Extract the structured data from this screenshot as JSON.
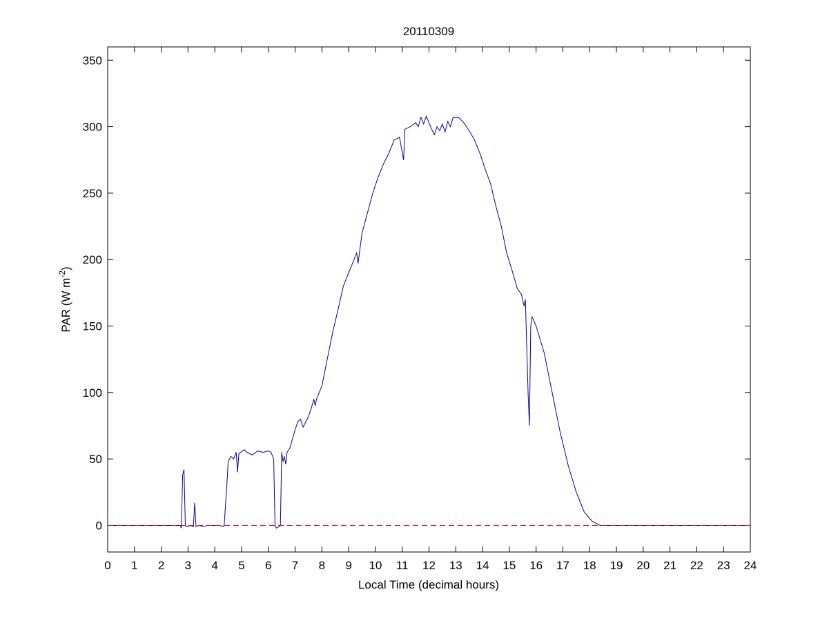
{
  "chart_data": {
    "type": "line",
    "title": "20110309",
    "xlabel": "Local Time (decimal hours)",
    "ylabel": [
      "PAR (W m",
      "-2",
      ")"
    ],
    "xlim": [
      0,
      24
    ],
    "ylim": [
      -20,
      360
    ],
    "xticks": [
      0,
      1,
      2,
      3,
      4,
      5,
      6,
      7,
      8,
      9,
      10,
      11,
      12,
      13,
      14,
      15,
      16,
      17,
      18,
      19,
      20,
      21,
      22,
      23,
      24
    ],
    "yticks": [
      0,
      50,
      100,
      150,
      200,
      250,
      300,
      350
    ],
    "reference_line": {
      "value": 0,
      "color": "#ff0000",
      "style": "dashed"
    },
    "series": [
      {
        "color": "#0000a0",
        "x": [
          0,
          2.7,
          2.75,
          2.8,
          2.85,
          2.9,
          2.95,
          3.1,
          3.2,
          3.25,
          3.3,
          3.4,
          3.6,
          3.7,
          4.2,
          4.3,
          4.35,
          4.45,
          4.5,
          4.6,
          4.7,
          4.8,
          4.85,
          4.9,
          5.1,
          5.2,
          5.4,
          5.6,
          5.8,
          6.0,
          6.1,
          6.2,
          6.25,
          6.3,
          6.4,
          6.45,
          6.5,
          6.55,
          6.6,
          6.65,
          6.7,
          6.8,
          6.9,
          7.0,
          7.1,
          7.2,
          7.3,
          7.4,
          7.5,
          7.6,
          7.7,
          7.75,
          7.8,
          8.0,
          8.2,
          8.4,
          8.6,
          8.8,
          9.0,
          9.2,
          9.3,
          9.35,
          9.5,
          9.7,
          9.9,
          10.1,
          10.3,
          10.5,
          10.7,
          10.9,
          11.05,
          11.1,
          11.3,
          11.5,
          11.6,
          11.7,
          11.8,
          11.9,
          12.0,
          12.1,
          12.2,
          12.3,
          12.4,
          12.5,
          12.6,
          12.7,
          12.8,
          12.9,
          13.1,
          13.3,
          13.5,
          13.7,
          13.9,
          14.1,
          14.3,
          14.5,
          14.7,
          14.9,
          15.1,
          15.3,
          15.45,
          15.55,
          15.6,
          15.7,
          15.75,
          15.8,
          15.85,
          16.0,
          16.3,
          16.6,
          16.9,
          17.2,
          17.5,
          17.8,
          18.1,
          18.4,
          24
        ],
        "values": [
          0,
          0,
          -2,
          38,
          42,
          0,
          -1,
          0,
          -1,
          17,
          -1,
          0,
          -1,
          0,
          0,
          -1,
          0,
          30,
          48,
          52,
          50,
          55,
          40,
          54,
          57,
          55,
          53,
          56,
          55,
          56,
          55,
          50,
          0,
          -2,
          -1,
          0,
          55,
          48,
          52,
          46,
          55,
          58,
          65,
          72,
          78,
          80,
          74,
          78,
          82,
          88,
          95,
          90,
          95,
          105,
          125,
          145,
          162,
          180,
          190,
          200,
          205,
          197,
          220,
          235,
          250,
          262,
          272,
          280,
          290,
          292,
          275,
          298,
          300,
          303,
          300,
          307,
          302,
          308,
          303,
          298,
          294,
          300,
          297,
          302,
          296,
          304,
          300,
          307,
          307,
          303,
          297,
          290,
          280,
          268,
          257,
          240,
          225,
          205,
          192,
          178,
          174,
          165,
          170,
          100,
          75,
          150,
          157,
          150,
          130,
          100,
          70,
          45,
          25,
          10,
          3,
          0,
          0
        ]
      }
    ]
  }
}
